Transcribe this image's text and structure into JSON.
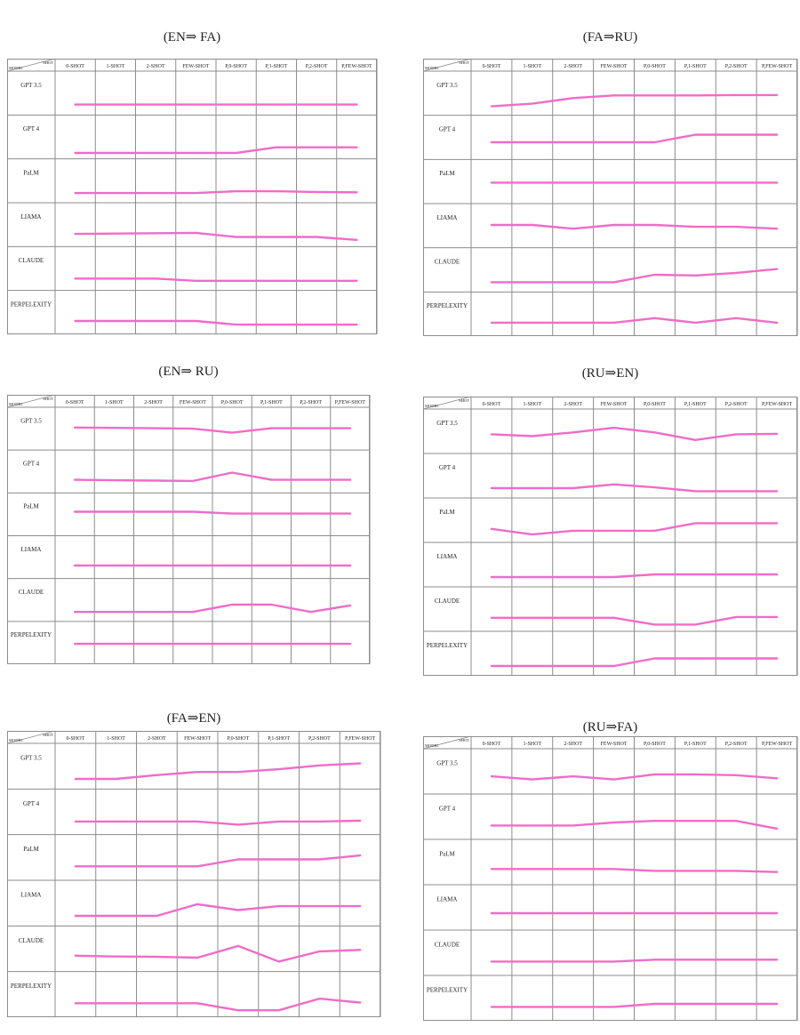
{
  "figure": {
    "row_labels": [
      "GPT 3.5",
      "GPT 4",
      "PaLM",
      "LIAMA",
      "CLAUDE",
      "PERPELEXITY"
    ],
    "corner_model": "MODEL",
    "corner_shot": "SHOT",
    "line_color": "#f06cc8",
    "grid_color": "#8c8c8c"
  },
  "chart_data": [
    {
      "type": "line",
      "title": "(EN⇒ FA)",
      "categories": [
        "0-SHOT",
        "1-SHOT",
        "2-SHOT",
        "FEW-SHOT",
        "P,0-SHOT",
        "P,1-SHOT",
        "P,2-SHOT",
        "P,FEW-SHOT"
      ],
      "series": [
        {
          "name": "GPT 3.5",
          "values": [
            0.22,
            0.22,
            0.22,
            0.22,
            0.22,
            0.22,
            0.22,
            0.22
          ]
        },
        {
          "name": "GPT 4",
          "values": [
            0.1,
            0.1,
            0.1,
            0.1,
            0.1,
            0.25,
            0.25,
            0.25
          ]
        },
        {
          "name": "PaLM",
          "values": [
            0.2,
            0.2,
            0.2,
            0.2,
            0.25,
            0.25,
            0.23,
            0.22
          ]
        },
        {
          "name": "LIAMA",
          "values": [
            0.28,
            0.29,
            0.3,
            0.31,
            0.2,
            0.2,
            0.2,
            0.12
          ]
        },
        {
          "name": "CLAUDE",
          "values": [
            0.26,
            0.26,
            0.26,
            0.2,
            0.2,
            0.2,
            0.2,
            0.2
          ]
        },
        {
          "name": "PERPELEXITY",
          "values": [
            0.3,
            0.3,
            0.3,
            0.3,
            0.2,
            0.2,
            0.2,
            0.2
          ]
        }
      ]
    },
    {
      "type": "line",
      "title": "(FA⇒RU)",
      "categories": [
        "0-SHOT",
        "1-SHOT",
        "2-SHOT",
        "FEW-SHOT",
        "P,0-SHOT",
        "P,1-SHOT",
        "P,2-SHOT",
        "P,FEW-SHOT"
      ],
      "series": [
        {
          "name": "GPT 3.5",
          "values": [
            0.18,
            0.25,
            0.4,
            0.47,
            0.47,
            0.47,
            0.48,
            0.48
          ]
        },
        {
          "name": "GPT 4",
          "values": [
            0.4,
            0.4,
            0.4,
            0.4,
            0.4,
            0.6,
            0.6,
            0.6
          ]
        },
        {
          "name": "PaLM",
          "values": [
            0.5,
            0.5,
            0.5,
            0.5,
            0.5,
            0.5,
            0.5,
            0.5
          ]
        },
        {
          "name": "LIAMA",
          "values": [
            0.55,
            0.55,
            0.45,
            0.55,
            0.55,
            0.5,
            0.5,
            0.45
          ]
        },
        {
          "name": "CLAUDE",
          "values": [
            0.2,
            0.2,
            0.2,
            0.2,
            0.4,
            0.38,
            0.45,
            0.55
          ]
        },
        {
          "name": "PERPELEXITY",
          "values": [
            0.3,
            0.3,
            0.3,
            0.3,
            0.42,
            0.3,
            0.42,
            0.3
          ]
        }
      ]
    },
    {
      "type": "line",
      "title": "(EN⇒ RU)",
      "categories": [
        "0-SHOT",
        "1-SHOT",
        "2-SHOT",
        "FEW-SHOT",
        "P,0-SHOT",
        "P,1-SHOT",
        "P,2-SHOT",
        "P,FEW-SHOT"
      ],
      "series": [
        {
          "name": "GPT 3.5",
          "values": [
            0.56,
            0.55,
            0.54,
            0.53,
            0.42,
            0.54,
            0.54,
            0.54
          ]
        },
        {
          "name": "GPT 4",
          "values": [
            0.3,
            0.29,
            0.28,
            0.27,
            0.5,
            0.3,
            0.3,
            0.3
          ]
        },
        {
          "name": "PaLM",
          "values": [
            0.6,
            0.6,
            0.6,
            0.6,
            0.55,
            0.55,
            0.55,
            0.55
          ]
        },
        {
          "name": "LIAMA",
          "values": [
            0.3,
            0.3,
            0.3,
            0.3,
            0.3,
            0.3,
            0.3,
            0.3
          ]
        },
        {
          "name": "CLAUDE",
          "values": [
            0.2,
            0.2,
            0.2,
            0.2,
            0.4,
            0.4,
            0.2,
            0.38
          ]
        },
        {
          "name": "PERPELEXITY",
          "values": [
            0.5,
            0.5,
            0.5,
            0.5,
            0.5,
            0.5,
            0.5,
            0.5
          ]
        }
      ]
    },
    {
      "type": "line",
      "title": "(RU⇒EN)",
      "categories": [
        "0-SHOT",
        "1-SHOT",
        "2-SHOT",
        "FEW-SHOT",
        "P,0-SHOT",
        "P,1-SHOT",
        "P,2-SHOT",
        "P,FEW-SHOT"
      ],
      "series": [
        {
          "name": "GPT 3.5",
          "values": [
            0.45,
            0.4,
            0.5,
            0.62,
            0.5,
            0.3,
            0.45,
            0.46
          ]
        },
        {
          "name": "GPT 4",
          "values": [
            0.2,
            0.2,
            0.2,
            0.3,
            0.22,
            0.12,
            0.12,
            0.12
          ]
        },
        {
          "name": "PaLM",
          "values": [
            0.3,
            0.15,
            0.25,
            0.25,
            0.25,
            0.45,
            0.45,
            0.45
          ]
        },
        {
          "name": "LIAMA",
          "values": [
            0.2,
            0.2,
            0.2,
            0.2,
            0.27,
            0.27,
            0.27,
            0.27
          ]
        },
        {
          "name": "CLAUDE",
          "values": [
            0.3,
            0.3,
            0.3,
            0.3,
            0.12,
            0.12,
            0.32,
            0.32
          ]
        },
        {
          "name": "PERPELEXITY",
          "values": [
            0.2,
            0.2,
            0.2,
            0.2,
            0.4,
            0.4,
            0.4,
            0.4
          ]
        }
      ]
    },
    {
      "type": "line",
      "title": "(FA⇒EN)",
      "categories": [
        "0-SHOT",
        "1-SHOT",
        "2-SHOT",
        "FEW-SHOT",
        "P,0-SHOT",
        "P,1-SHOT",
        "P,2-SHOT",
        "P,FEW-SHOT"
      ],
      "series": [
        {
          "name": "GPT 3.5",
          "values": [
            0.2,
            0.2,
            0.3,
            0.38,
            0.38,
            0.45,
            0.55,
            0.6
          ]
        },
        {
          "name": "GPT 4",
          "values": [
            0.28,
            0.28,
            0.28,
            0.28,
            0.2,
            0.28,
            0.28,
            0.3
          ]
        },
        {
          "name": "PaLM",
          "values": [
            0.3,
            0.3,
            0.3,
            0.3,
            0.48,
            0.48,
            0.48,
            0.58
          ]
        },
        {
          "name": "LIAMA",
          "values": [
            0.2,
            0.2,
            0.2,
            0.5,
            0.35,
            0.45,
            0.45,
            0.45
          ]
        },
        {
          "name": "CLAUDE",
          "values": [
            0.35,
            0.33,
            0.32,
            0.3,
            0.6,
            0.2,
            0.46,
            0.5
          ]
        },
        {
          "name": "PERPELEXITY",
          "values": [
            0.3,
            0.3,
            0.3,
            0.3,
            0.12,
            0.12,
            0.42,
            0.32
          ]
        }
      ]
    },
    {
      "type": "line",
      "title": "(RU⇒FA)",
      "categories": [
        "0-SHOT",
        "1-SHOT",
        "2-SHOT",
        "FEW-SHOT",
        "P,0-SHOT",
        "P,1-SHOT",
        "P,2-SHOT",
        "P,FEW-SHOT"
      ],
      "series": [
        {
          "name": "GPT 3.5",
          "values": [
            0.4,
            0.32,
            0.4,
            0.32,
            0.45,
            0.45,
            0.43,
            0.35
          ]
        },
        {
          "name": "GPT 4",
          "values": [
            0.3,
            0.3,
            0.3,
            0.38,
            0.42,
            0.42,
            0.42,
            0.22
          ]
        },
        {
          "name": "PaLM",
          "values": [
            0.35,
            0.35,
            0.35,
            0.35,
            0.3,
            0.3,
            0.3,
            0.27
          ]
        },
        {
          "name": "LIAMA",
          "values": [
            0.38,
            0.38,
            0.38,
            0.38,
            0.38,
            0.38,
            0.38,
            0.38
          ]
        },
        {
          "name": "CLAUDE",
          "values": [
            0.3,
            0.3,
            0.3,
            0.3,
            0.35,
            0.35,
            0.35,
            0.35
          ]
        },
        {
          "name": "PERPELEXITY",
          "values": [
            0.3,
            0.3,
            0.3,
            0.3,
            0.38,
            0.38,
            0.38,
            0.38
          ]
        }
      ]
    }
  ]
}
